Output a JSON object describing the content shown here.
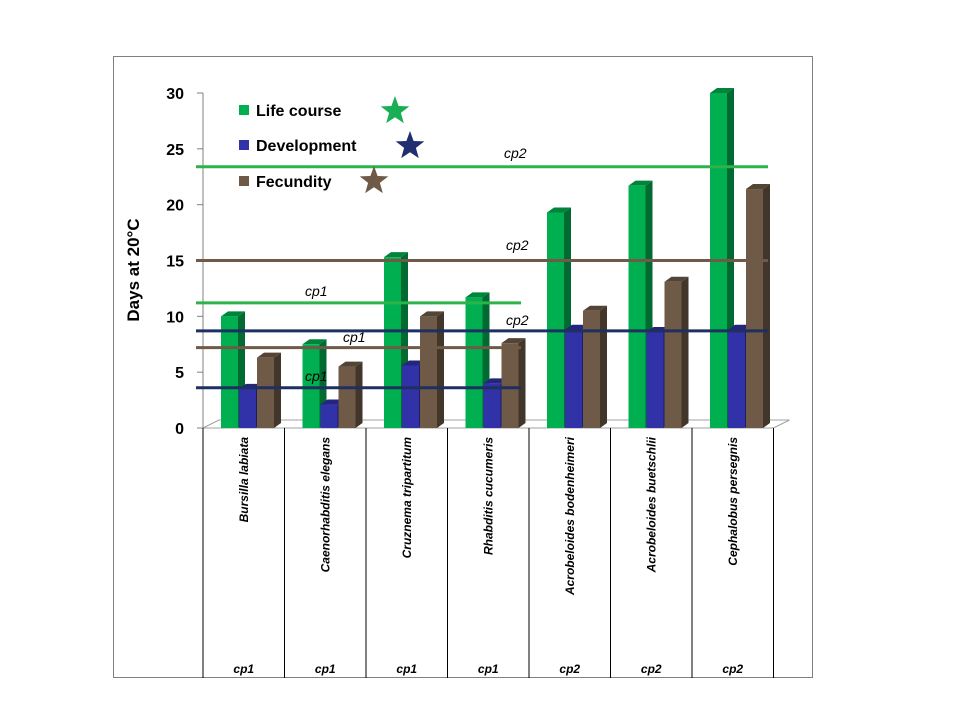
{
  "chart_data": {
    "type": "bar",
    "ylabel": "Days at 20°C",
    "ylim": [
      0,
      30
    ],
    "yticks": [
      0,
      5,
      10,
      15,
      20,
      25,
      30
    ],
    "categories": [
      "Bursilla labiata",
      "Caenorhabditis elegans",
      "Cruznema tripartitum",
      "Rhabditis cucumeris",
      "Acrobeloides bodenheimeri",
      "Acrobeloides buetschlii",
      "Cephalobus persegnis"
    ],
    "groups": [
      "cp1",
      "cp1",
      "cp1",
      "cp1",
      "cp2",
      "cp2",
      "cp2"
    ],
    "series": [
      {
        "name": "Life course",
        "color": "#00b050",
        "values": [
          10.0,
          7.5,
          15.3,
          11.7,
          19.3,
          21.7,
          30.0
        ]
      },
      {
        "name": "Development",
        "color": "#3131a8",
        "values": [
          3.5,
          2.1,
          5.6,
          4.0,
          8.8,
          8.6,
          8.8
        ]
      },
      {
        "name": "Fecundity",
        "color": "#6e5a46",
        "values": [
          6.3,
          5.5,
          10.0,
          7.6,
          10.5,
          13.1,
          21.4
        ]
      }
    ],
    "legend_stars": [
      "Life course",
      "Development",
      "Fecundity"
    ],
    "reference_lines": [
      {
        "label": "cp1",
        "series": "Life course",
        "value": 11.2,
        "span": "cp1",
        "color": "#2db34a"
      },
      {
        "label": "cp1",
        "series": "Fecundity",
        "value": 7.2,
        "span": "cp1",
        "color": "#6e5a46"
      },
      {
        "label": "cp1",
        "series": "Development",
        "value": 3.6,
        "span": "cp1",
        "color": "#1f2f5f"
      },
      {
        "label": "cp2",
        "series": "Life course",
        "value": 23.4,
        "span": "all",
        "color": "#2db34a"
      },
      {
        "label": "cp2",
        "series": "Fecundity",
        "value": 15.0,
        "span": "all",
        "color": "#6e5a46"
      },
      {
        "label": "cp2",
        "series": "Development",
        "value": 8.7,
        "span": "all",
        "color": "#1f2f5f"
      }
    ]
  }
}
